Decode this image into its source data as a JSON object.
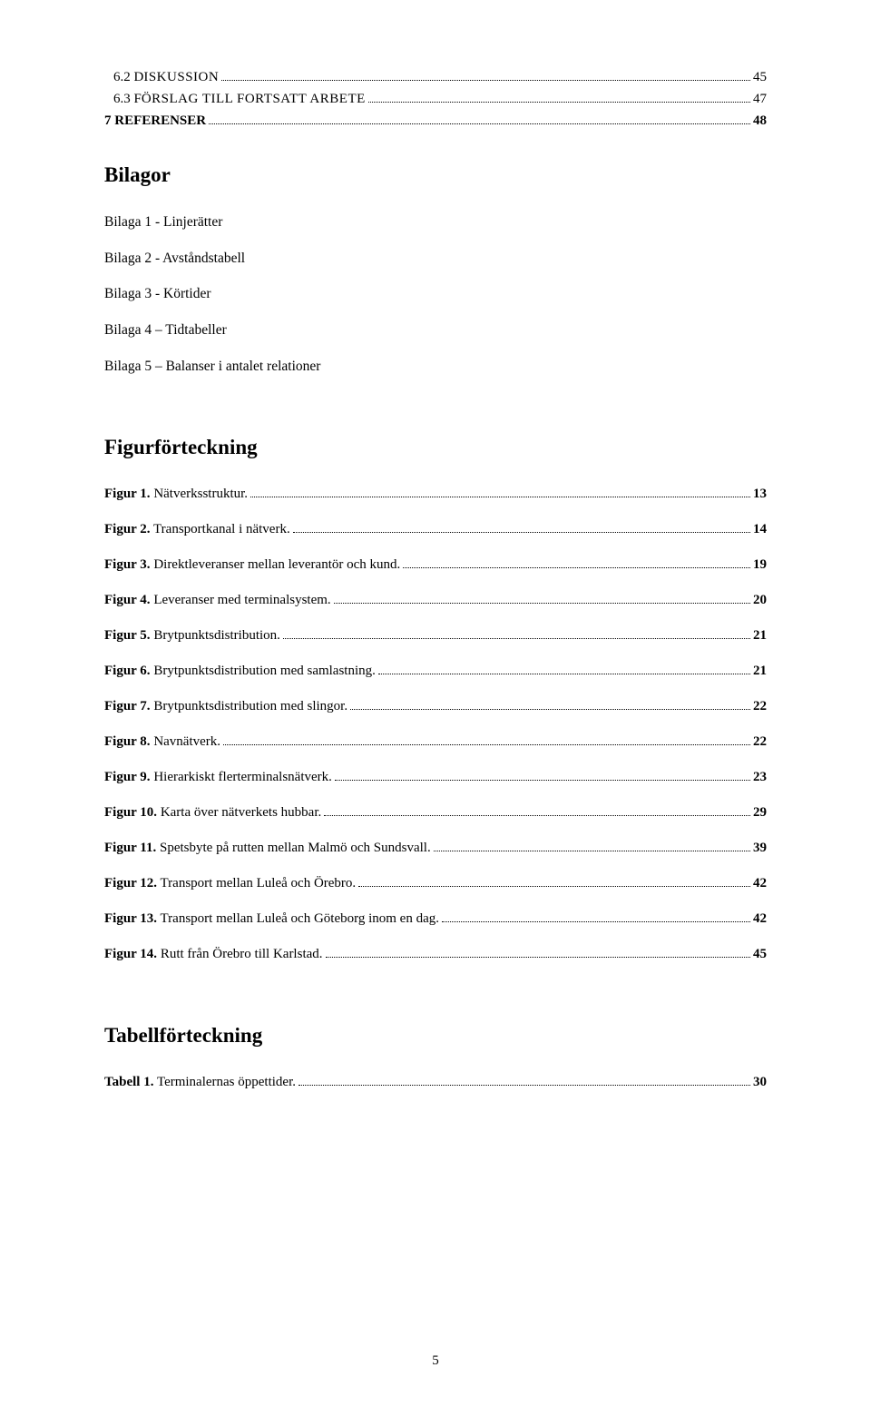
{
  "toc_top": [
    {
      "label_a": "6.2 D",
      "label_b": "ISKUSSION",
      "page": "45"
    },
    {
      "label_a": "6.3 F",
      "label_b": "ÖRSLAG TILL FORTSATT ARBETE",
      "page": "47"
    },
    {
      "label_a": "7 REFERENSER",
      "label_b": "",
      "page": "48"
    }
  ],
  "bilagor": {
    "heading": "Bilagor",
    "items": [
      "Bilaga 1 - Linjerätter",
      "Bilaga 2 - Avståndstabell",
      "Bilaga 3 - Körtider",
      "Bilaga 4 – Tidtabeller",
      "Bilaga 5 – Balanser i antalet relationer"
    ]
  },
  "figures": {
    "heading": "Figurförteckning",
    "items": [
      {
        "bold": "Figur 1.",
        "rest": " Nätverksstruktur.",
        "page": "13"
      },
      {
        "bold": "Figur 2.",
        "rest": " Transportkanal i nätverk.",
        "page": "14"
      },
      {
        "bold": "Figur 3.",
        "rest": " Direktleveranser mellan leverantör och kund.",
        "page": "19"
      },
      {
        "bold": "Figur 4.",
        "rest": " Leveranser med terminalsystem.",
        "page": "20"
      },
      {
        "bold": "Figur 5.",
        "rest": " Brytpunktsdistribution.",
        "page": "21"
      },
      {
        "bold": "Figur 6.",
        "rest": " Brytpunktsdistribution med samlastning.",
        "page": "21"
      },
      {
        "bold": "Figur 7.",
        "rest": " Brytpunktsdistribution med slingor.",
        "page": "22"
      },
      {
        "bold": "Figur 8.",
        "rest": " Navnätverk.",
        "page": "22"
      },
      {
        "bold": "Figur 9.",
        "rest": " Hierarkiskt flerterminalsnätverk.",
        "page": "23"
      },
      {
        "bold": "Figur 10.",
        "rest": " Karta över nätverkets hubbar.",
        "page": "29"
      },
      {
        "bold": "Figur 11.",
        "rest": " Spetsbyte på rutten mellan Malmö och Sundsvall.",
        "page": "39"
      },
      {
        "bold": "Figur 12.",
        "rest": " Transport mellan Luleå och Örebro.",
        "page": "42"
      },
      {
        "bold": "Figur 13.",
        "rest": " Transport mellan Luleå och Göteborg inom en dag.",
        "page": "42"
      },
      {
        "bold": "Figur 14.",
        "rest": " Rutt från Örebro till Karlstad.",
        "page": "45"
      }
    ]
  },
  "tables": {
    "heading": "Tabellförteckning",
    "items": [
      {
        "bold": "Tabell 1.",
        "rest": " Terminalernas öppettider.",
        "page": "30"
      }
    ]
  },
  "page_number": "5"
}
